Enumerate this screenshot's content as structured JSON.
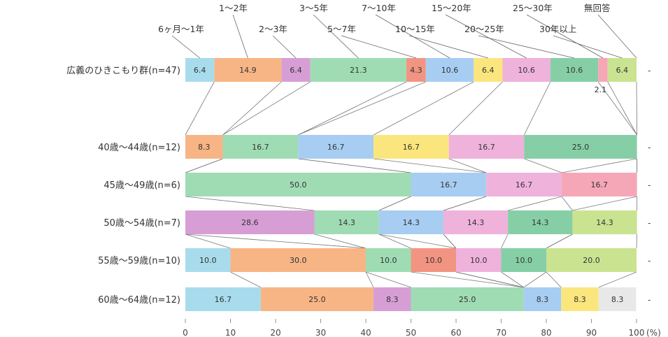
{
  "chart_data": {
    "type": "bar",
    "orientation": "horizontal",
    "stacked": true,
    "percent": true,
    "title": "",
    "xlabel": "",
    "unit_label": "(%)",
    "xlim": [
      0,
      100
    ],
    "x_ticks": [
      "0",
      "10",
      "20",
      "30",
      "40",
      "50",
      "60",
      "70",
      "80",
      "90",
      "100"
    ],
    "grid": false,
    "legend_placement": "top",
    "categories": [
      {
        "label": "6ヶ月〜1年",
        "color": "#a8dcec"
      },
      {
        "label": "1〜2年",
        "color": "#f7b585"
      },
      {
        "label": "2〜3年",
        "color": "#d79ed6"
      },
      {
        "label": "3〜5年",
        "color": "#9fdcb4"
      },
      {
        "label": "5〜7年",
        "color": "#f29482"
      },
      {
        "label": "7〜10年",
        "color": "#a7cdf2"
      },
      {
        "label": "10〜15年",
        "color": "#fbe67e"
      },
      {
        "label": "15〜20年",
        "color": "#efb2db"
      },
      {
        "label": "20〜25年",
        "color": "#86cfa6"
      },
      {
        "label": "25〜30年",
        "color": "#f6a7b7"
      },
      {
        "label": "30年以上",
        "color": "#c9e391"
      },
      {
        "label": "無回答",
        "color": "#e8e8e8"
      }
    ],
    "rows": [
      {
        "label": "広義のひきこもり群(n=47)",
        "values": [
          6.4,
          14.9,
          6.4,
          21.3,
          4.3,
          10.6,
          6.4,
          10.6,
          10.6,
          2.1,
          6.4,
          0
        ],
        "extra_label": "2.1"
      },
      {
        "label": "40歳〜44歳(n=12)",
        "values": [
          0,
          8.3,
          0,
          16.7,
          0,
          16.7,
          16.7,
          16.7,
          25.0,
          0,
          0,
          0
        ]
      },
      {
        "label": "45歳〜49歳(n=6)",
        "values": [
          0,
          0,
          0,
          50.0,
          0,
          16.7,
          0,
          16.7,
          0,
          16.7,
          0,
          0
        ]
      },
      {
        "label": "50歳〜54歳(n=7)",
        "values": [
          0,
          0,
          28.6,
          14.3,
          0,
          14.3,
          0,
          14.3,
          14.3,
          0,
          14.3,
          0
        ]
      },
      {
        "label": "55歳〜59歳(n=10)",
        "values": [
          10.0,
          30.0,
          0,
          10.0,
          10.0,
          0,
          0,
          10.0,
          10.0,
          0,
          20.0,
          0
        ]
      },
      {
        "label": "60歳〜64歳(n=12)",
        "values": [
          16.7,
          25.0,
          8.3,
          25.0,
          0,
          0,
          0,
          0,
          0,
          8.3,
          8.3,
          8.3
        ],
        "value_colors": {
          "5": "#f29482",
          "9": "#a7cdf2",
          "10": "#fbe67e"
        }
      }
    ],
    "row_end_mark": "-"
  }
}
